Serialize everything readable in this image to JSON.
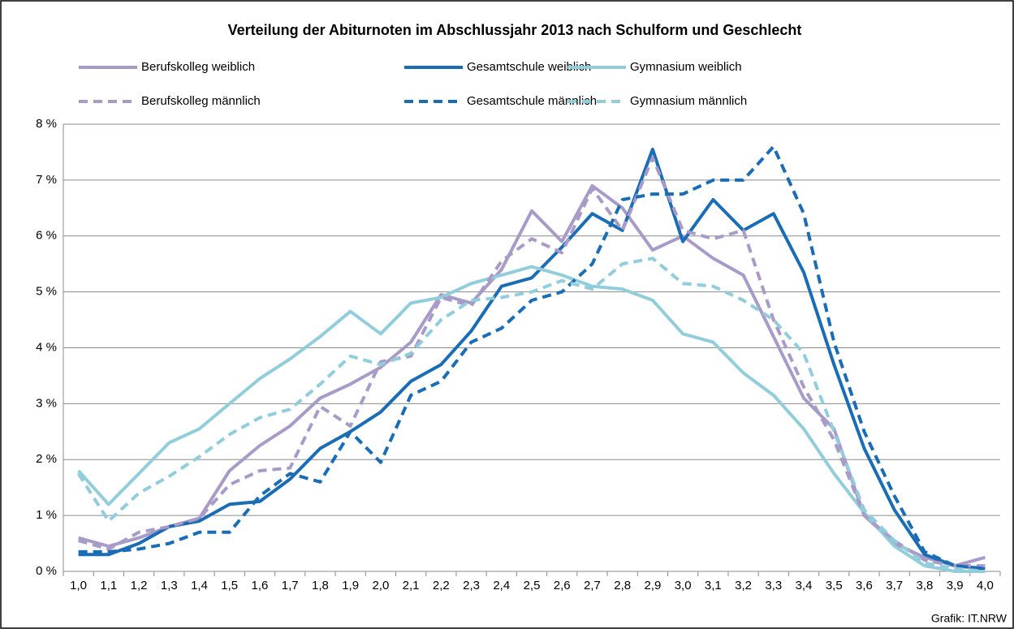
{
  "chart_data": {
    "type": "line",
    "title": "Verteilung der Abiturnoten im Abschlussjahr 2013 nach Schulform und Geschlecht",
    "source": "Grafik: IT.NRW",
    "categories": [
      "1,0",
      "1,1",
      "1,2",
      "1,3",
      "1,4",
      "1,5",
      "1,6",
      "1,7",
      "1,8",
      "1,9",
      "2,0",
      "2,1",
      "2,2",
      "2,3",
      "2,4",
      "2,5",
      "2,6",
      "2,7",
      "2,8",
      "2,9",
      "3,0",
      "3,1",
      "3,2",
      "3,3",
      "3,4",
      "3,5",
      "3,6",
      "3,7",
      "3,8",
      "3,9",
      "4,0"
    ],
    "series": [
      {
        "name": "Berufskolleg weiblich",
        "color": "#a99bc8",
        "dashed": false,
        "values": [
          0.6,
          0.45,
          0.6,
          0.8,
          0.95,
          1.8,
          2.25,
          2.6,
          3.1,
          3.35,
          3.65,
          4.1,
          4.95,
          4.8,
          5.4,
          6.45,
          5.9,
          6.9,
          6.5,
          5.75,
          6.0,
          5.6,
          5.3,
          4.2,
          3.1,
          2.55,
          1.0,
          0.5,
          0.25,
          0.1,
          0.25
        ]
      },
      {
        "name": "Gesamtschule weiblich",
        "color": "#1a6db5",
        "dashed": false,
        "values": [
          0.3,
          0.3,
          0.5,
          0.8,
          0.9,
          1.2,
          1.25,
          1.65,
          2.2,
          2.5,
          2.85,
          3.4,
          3.7,
          4.3,
          5.1,
          5.25,
          5.8,
          6.4,
          6.1,
          7.55,
          5.9,
          6.65,
          6.1,
          6.4,
          5.35,
          3.7,
          2.2,
          1.1,
          0.3,
          0.1,
          0.05
        ]
      },
      {
        "name": "Gymnasium weiblich",
        "color": "#92cddc",
        "dashed": false,
        "values": [
          1.8,
          1.2,
          1.75,
          2.3,
          2.55,
          3.0,
          3.45,
          3.8,
          4.2,
          4.65,
          4.25,
          4.8,
          4.9,
          5.15,
          5.3,
          5.45,
          5.3,
          5.1,
          5.05,
          4.85,
          4.25,
          4.1,
          3.55,
          3.15,
          2.55,
          1.75,
          1.05,
          0.45,
          0.1,
          0.0,
          0.0
        ]
      },
      {
        "name": "Berufskolleg männlich",
        "color": "#a99bc8",
        "dashed": true,
        "values": [
          0.55,
          0.4,
          0.7,
          0.8,
          0.95,
          1.55,
          1.8,
          1.85,
          2.95,
          2.6,
          3.75,
          3.85,
          4.9,
          4.75,
          5.55,
          5.95,
          5.7,
          6.85,
          6.1,
          7.4,
          6.1,
          5.95,
          6.1,
          4.5,
          3.3,
          2.35,
          1.0,
          0.55,
          0.2,
          0.1,
          0.1
        ]
      },
      {
        "name": "Gesamtschule männlich",
        "color": "#1a6db5",
        "dashed": true,
        "values": [
          0.35,
          0.35,
          0.4,
          0.5,
          0.7,
          0.7,
          1.35,
          1.75,
          1.6,
          2.5,
          1.95,
          3.15,
          3.4,
          4.1,
          4.35,
          4.85,
          5.0,
          5.5,
          6.65,
          6.75,
          6.75,
          7.0,
          7.0,
          7.6,
          6.4,
          4.1,
          2.5,
          1.35,
          0.35,
          0.1,
          0.05
        ]
      },
      {
        "name": "Gymnasium männlich",
        "color": "#92cddc",
        "dashed": true,
        "values": [
          1.75,
          0.9,
          1.4,
          1.7,
          2.05,
          2.45,
          2.75,
          2.9,
          3.35,
          3.85,
          3.7,
          3.9,
          4.5,
          4.85,
          4.9,
          5.0,
          5.2,
          5.05,
          5.5,
          5.6,
          5.15,
          5.1,
          4.85,
          4.5,
          3.9,
          2.5,
          1.1,
          0.55,
          0.15,
          0.05,
          0.0
        ]
      }
    ],
    "ylim": [
      0,
      8
    ],
    "yticks": [
      {
        "value": 0,
        "label": "0 %"
      },
      {
        "value": 1,
        "label": "1 %"
      },
      {
        "value": 2,
        "label": "2 %"
      },
      {
        "value": 3,
        "label": "3 %"
      },
      {
        "value": 4,
        "label": "4 %"
      },
      {
        "value": 5,
        "label": "5 %"
      },
      {
        "value": 6,
        "label": "6 %"
      },
      {
        "value": 7,
        "label": "7 %"
      },
      {
        "value": 8,
        "label": "8 %"
      }
    ],
    "grid": true
  }
}
